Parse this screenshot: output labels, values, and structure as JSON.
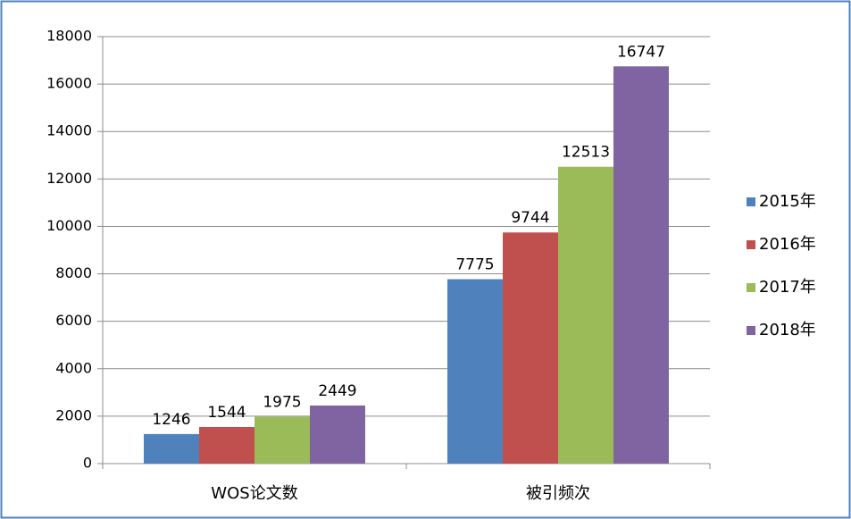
{
  "chart_data": {
    "type": "bar",
    "categories": [
      "WOS论文数",
      "被引频次"
    ],
    "series": [
      {
        "name": "2015年",
        "color": "#4f81bd",
        "values": [
          1246,
          7775
        ]
      },
      {
        "name": "2016年",
        "color": "#c0504d",
        "values": [
          1544,
          9744
        ]
      },
      {
        "name": "2017年",
        "color": "#9bbb59",
        "values": [
          1975,
          12513
        ]
      },
      {
        "name": "2018年",
        "color": "#8064a2",
        "values": [
          2449,
          16747
        ]
      }
    ],
    "ylim": [
      0,
      18000
    ],
    "yticks": [
      0,
      2000,
      4000,
      6000,
      8000,
      10000,
      12000,
      14000,
      16000,
      18000
    ],
    "grid": true,
    "legend": "right"
  }
}
